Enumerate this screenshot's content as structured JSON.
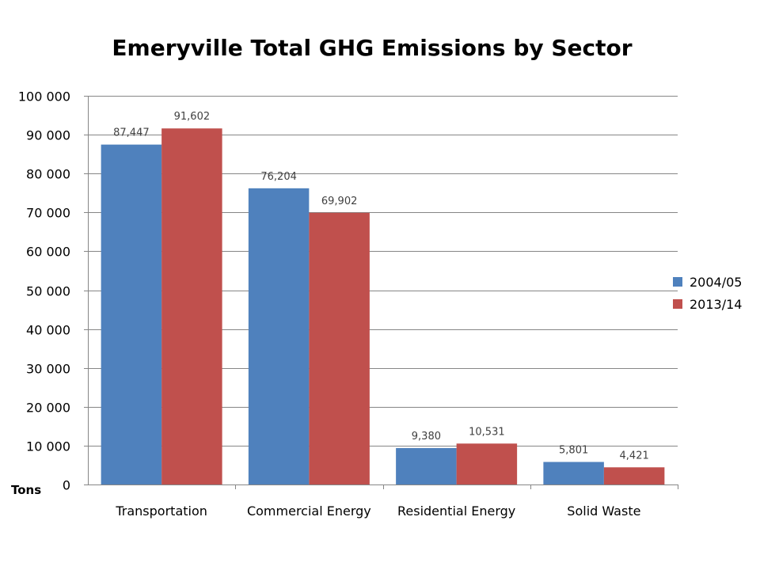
{
  "chart_data": {
    "type": "bar",
    "title": "Emeryville Total GHG Emissions by Sector",
    "xlabel": "",
    "ylabel": "Tons",
    "categories": [
      "Transportation",
      "Commercial Energy",
      "Residential Energy",
      "Solid Waste"
    ],
    "series": [
      {
        "name": "2004/05",
        "color": "#4f81bd",
        "values": [
          87447,
          76204,
          9380,
          5801
        ],
        "labels": [
          "87,447",
          "76,204",
          "9,380",
          "5,801"
        ]
      },
      {
        "name": "2013/14",
        "color": "#c0504d",
        "values": [
          91602,
          69902,
          10531,
          4421
        ],
        "labels": [
          "91,602",
          "69,902",
          "10,531",
          "4,421"
        ]
      }
    ],
    "ylim": [
      0,
      100000
    ],
    "yticks": [
      0,
      10000,
      20000,
      30000,
      40000,
      50000,
      60000,
      70000,
      80000,
      90000,
      100000
    ],
    "ytick_labels": [
      "0",
      "10 000",
      "20 000",
      "30 000",
      "40 000",
      "50 000",
      "60 000",
      "70 000",
      "80 000",
      "90 000",
      "100 000"
    ],
    "grid": true,
    "legend_position": "right"
  }
}
